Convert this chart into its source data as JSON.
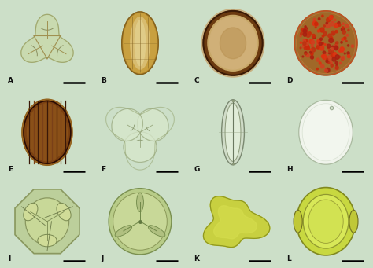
{
  "figsize": [
    4.74,
    3.41
  ],
  "dpi": 100,
  "bg_color": "#ccdfc8",
  "row3_bg": "#ccdfc8",
  "grid_rows": 3,
  "grid_cols": 4,
  "labels": [
    "A",
    "B",
    "C",
    "D",
    "E",
    "F",
    "G",
    "H",
    "I",
    "J",
    "K",
    "L"
  ],
  "label_color": "#111111",
  "scale_bar_color": "#000000",
  "wspace": 0.02,
  "hspace": 0.02
}
